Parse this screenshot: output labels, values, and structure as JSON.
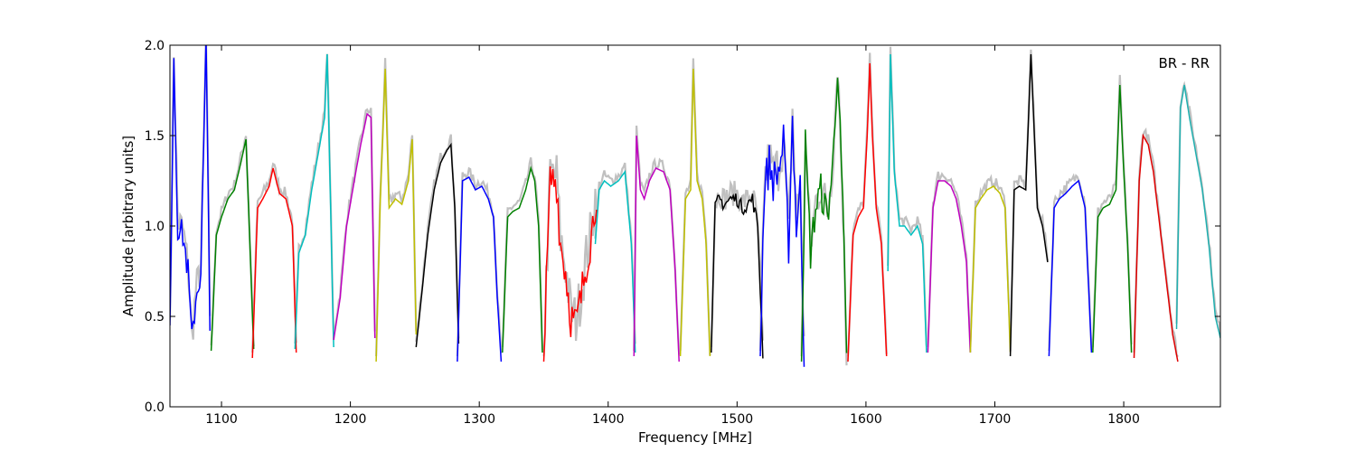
{
  "chart_data": {
    "type": "line",
    "title": "",
    "annotation": "BR - RR",
    "xlabel": "Frequency [MHz]",
    "ylabel": "Amplitude [arbitrary units]",
    "xlim": [
      1060,
      1875
    ],
    "ylim": [
      0.0,
      2.0
    ],
    "grid": false,
    "legend": "none",
    "xticks": [
      1100,
      1200,
      1300,
      1400,
      1500,
      1600,
      1700,
      1800
    ],
    "xtick_labels": [
      "1100",
      "1200",
      "1300",
      "1400",
      "1500",
      "1600",
      "1700",
      "1800"
    ],
    "yticks": [
      0.0,
      0.5,
      1.0,
      1.5,
      2.0
    ],
    "ytick_labels": [
      "0.0",
      "0.5",
      "1.0",
      "1.5",
      "2.0"
    ],
    "reference_color": "#c0c0c0",
    "series": [
      {
        "color": "#0000ff",
        "noise": 0.08,
        "x": [
          1060,
          1063,
          1066,
          1070,
          1074,
          1077,
          1080,
          1084,
          1088,
          1091
        ],
        "y": [
          0.45,
          1.95,
          1.0,
          0.95,
          0.75,
          0.36,
          0.6,
          0.75,
          2.0,
          0.5
        ]
      },
      {
        "color": "#008000",
        "x": [
          1092,
          1096,
          1100,
          1105,
          1110,
          1115,
          1119,
          1122,
          1125
        ],
        "y": [
          0.31,
          0.95,
          1.05,
          1.15,
          1.2,
          1.35,
          1.48,
          0.9,
          0.32
        ]
      },
      {
        "color": "#ff0000",
        "x": [
          1124,
          1128,
          1132,
          1137,
          1140,
          1145,
          1150,
          1155,
          1158
        ],
        "y": [
          0.27,
          1.1,
          1.15,
          1.22,
          1.32,
          1.18,
          1.15,
          1.0,
          0.3
        ]
      },
      {
        "color": "#00bfbf",
        "x": [
          1157,
          1160,
          1165,
          1170,
          1175,
          1180,
          1182,
          1185,
          1187
        ],
        "y": [
          0.32,
          0.85,
          0.95,
          1.2,
          1.4,
          1.6,
          1.95,
          1.0,
          0.33
        ]
      },
      {
        "color": "#bf00bf",
        "x": [
          1187,
          1192,
          1197,
          1203,
          1208,
          1213,
          1216,
          1219
        ],
        "y": [
          0.37,
          0.6,
          1.0,
          1.25,
          1.45,
          1.62,
          1.6,
          0.38
        ]
      },
      {
        "color": "#bfbf00",
        "x": [
          1220,
          1223,
          1227,
          1230,
          1235,
          1240,
          1245,
          1248,
          1251
        ],
        "y": [
          0.25,
          1.1,
          1.87,
          1.1,
          1.15,
          1.12,
          1.25,
          1.48,
          0.4
        ]
      },
      {
        "color": "#000000",
        "x": [
          1251,
          1255,
          1260,
          1265,
          1270,
          1275,
          1278,
          1281,
          1284
        ],
        "y": [
          0.33,
          0.6,
          0.95,
          1.2,
          1.35,
          1.42,
          1.45,
          1.1,
          0.35
        ]
      },
      {
        "color": "#0000ff",
        "x": [
          1283,
          1287,
          1292,
          1297,
          1302,
          1307,
          1311,
          1314,
          1317
        ],
        "y": [
          0.25,
          1.25,
          1.27,
          1.2,
          1.22,
          1.15,
          1.05,
          0.6,
          0.25
        ]
      },
      {
        "color": "#008000",
        "x": [
          1318,
          1322,
          1326,
          1331,
          1336,
          1340,
          1343,
          1346,
          1349
        ],
        "y": [
          0.3,
          1.05,
          1.08,
          1.1,
          1.2,
          1.32,
          1.25,
          1.0,
          0.3
        ]
      },
      {
        "color": "#ff0000",
        "noise": 0.12,
        "x": [
          1350,
          1355,
          1360,
          1363,
          1367,
          1371,
          1375,
          1379,
          1383,
          1387,
          1391
        ],
        "y": [
          0.25,
          1.25,
          1.25,
          0.9,
          0.75,
          0.5,
          0.45,
          0.6,
          0.8,
          0.95,
          1.2
        ]
      },
      {
        "color": "#00bfbf",
        "x": [
          1390,
          1393,
          1397,
          1402,
          1408,
          1413,
          1418,
          1421
        ],
        "y": [
          0.9,
          1.2,
          1.25,
          1.22,
          1.25,
          1.3,
          0.9,
          0.3
        ]
      },
      {
        "color": "#bf00bf",
        "x": [
          1420,
          1422,
          1425,
          1428,
          1432,
          1437,
          1443,
          1448,
          1452,
          1455
        ],
        "y": [
          0.28,
          1.5,
          1.2,
          1.15,
          1.25,
          1.32,
          1.3,
          1.2,
          0.75,
          0.25
        ]
      },
      {
        "color": "#bfbf00",
        "x": [
          1456,
          1460,
          1464,
          1466,
          1469,
          1473,
          1476,
          1479
        ],
        "y": [
          0.28,
          1.15,
          1.2,
          1.87,
          1.25,
          1.15,
          0.9,
          0.28
        ]
      },
      {
        "color": "#000000",
        "noise": 0.04,
        "x": [
          1480,
          1483,
          1486,
          1490,
          1495,
          1500,
          1504,
          1508,
          1512,
          1516,
          1520
        ],
        "y": [
          0.3,
          1.1,
          1.15,
          1.12,
          1.15,
          1.15,
          1.1,
          1.12,
          1.15,
          1.0,
          0.3
        ]
      },
      {
        "color": "#0000ff",
        "noise": 0.12,
        "x": [
          1518,
          1521,
          1525,
          1528,
          1532,
          1536,
          1540,
          1543,
          1546,
          1549,
          1552
        ],
        "y": [
          0.28,
          1.2,
          1.35,
          1.25,
          1.3,
          1.45,
          0.9,
          1.6,
          1.0,
          1.2,
          0.3
        ]
      },
      {
        "color": "#008000",
        "noise": 0.1,
        "x": [
          1550,
          1553,
          1557,
          1561,
          1565,
          1570,
          1574,
          1578,
          1582,
          1585
        ],
        "y": [
          0.25,
          1.45,
          0.85,
          1.1,
          1.2,
          1.05,
          1.3,
          1.9,
          1.1,
          0.25
        ]
      },
      {
        "color": "#ff0000",
        "x": [
          1586,
          1590,
          1594,
          1598,
          1601,
          1603,
          1605,
          1608,
          1612,
          1616
        ],
        "y": [
          0.25,
          0.95,
          1.05,
          1.1,
          1.5,
          1.9,
          1.5,
          1.1,
          0.9,
          0.28
        ]
      },
      {
        "color": "#00bfbf",
        "x": [
          1617,
          1619,
          1622,
          1626,
          1630,
          1635,
          1640,
          1644,
          1647
        ],
        "y": [
          0.75,
          1.95,
          1.3,
          1.0,
          1.0,
          0.95,
          1.0,
          0.9,
          0.3
        ]
      },
      {
        "color": "#bf00bf",
        "x": [
          1648,
          1652,
          1656,
          1661,
          1666,
          1670,
          1674,
          1678,
          1681
        ],
        "y": [
          0.3,
          1.1,
          1.25,
          1.25,
          1.22,
          1.15,
          1.0,
          0.8,
          0.3
        ]
      },
      {
        "color": "#bfbf00",
        "x": [
          1681,
          1685,
          1689,
          1694,
          1699,
          1704,
          1708,
          1712
        ],
        "y": [
          0.3,
          1.1,
          1.15,
          1.2,
          1.22,
          1.18,
          1.1,
          0.3
        ]
      },
      {
        "color": "#000000",
        "x": [
          1712,
          1715,
          1719,
          1724,
          1728,
          1733,
          1737,
          1741
        ],
        "y": [
          0.28,
          1.2,
          1.22,
          1.2,
          1.95,
          1.1,
          1.0,
          0.8
        ]
      },
      {
        "color": "#0000ff",
        "x": [
          1742,
          1746,
          1750,
          1755,
          1760,
          1765,
          1770,
          1775
        ],
        "y": [
          0.28,
          1.1,
          1.15,
          1.18,
          1.22,
          1.25,
          1.1,
          0.3
        ]
      },
      {
        "color": "#008000",
        "x": [
          1776,
          1780,
          1784,
          1789,
          1794,
          1797,
          1800,
          1803,
          1806
        ],
        "y": [
          0.3,
          1.05,
          1.1,
          1.12,
          1.2,
          1.78,
          1.3,
          0.9,
          0.3
        ]
      },
      {
        "color": "#e00000",
        "x": [
          1808,
          1812,
          1815,
          1819,
          1823,
          1828,
          1833,
          1838,
          1842
        ],
        "y": [
          0.27,
          1.25,
          1.5,
          1.45,
          1.3,
          1.0,
          0.7,
          0.4,
          0.25
        ]
      },
      {
        "color": "#20b0b0",
        "x": [
          1841,
          1844,
          1847,
          1851,
          1856,
          1861,
          1866,
          1871,
          1875
        ],
        "y": [
          0.43,
          1.65,
          1.78,
          1.6,
          1.4,
          1.2,
          0.9,
          0.5,
          0.38
        ]
      }
    ]
  }
}
